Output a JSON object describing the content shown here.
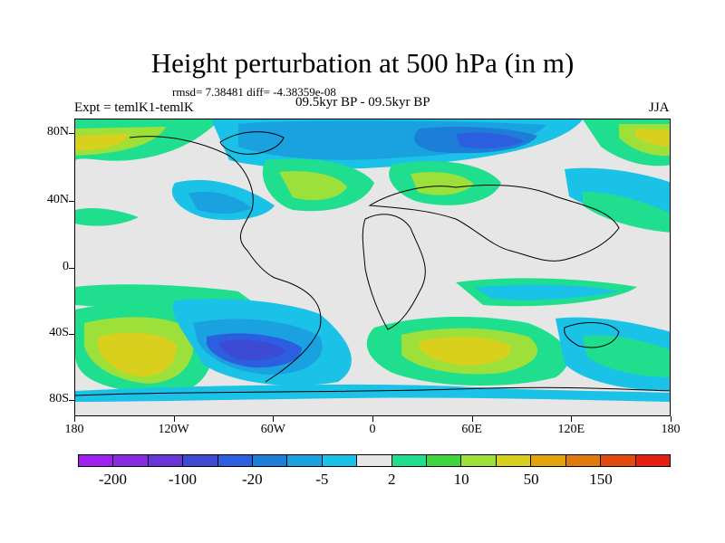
{
  "title": "Height perturbation at 500 hPa (in m)",
  "stats": "rmsd= 7.38481 diff= -4.38359e-08",
  "left_label": "Expt = temlK1-temlK",
  "center_label": "09.5kyr BP - 09.5kyr BP",
  "right_label": "JJA",
  "lat_labels": [
    "80N",
    "40N",
    "0",
    "40S",
    "80S"
  ],
  "lon_labels": [
    "180",
    "120W",
    "60W",
    "0",
    "60E",
    "120E",
    "180"
  ],
  "colorbar": {
    "colors": [
      "#a020f0",
      "#8a2be2",
      "#6a35d8",
      "#3d4ad4",
      "#2c5fe0",
      "#1d7ed8",
      "#1aa1e0",
      "#19c2e6",
      "#e6e6e6",
      "#1fdf8f",
      "#3dd63d",
      "#9ee03a",
      "#d8d01c",
      "#e2a20c",
      "#e07a0c",
      "#e24a10",
      "#e61e10"
    ],
    "labels": [
      "-200",
      "-100",
      "-20",
      "-5",
      "2",
      "10",
      "50",
      "150"
    ]
  }
}
